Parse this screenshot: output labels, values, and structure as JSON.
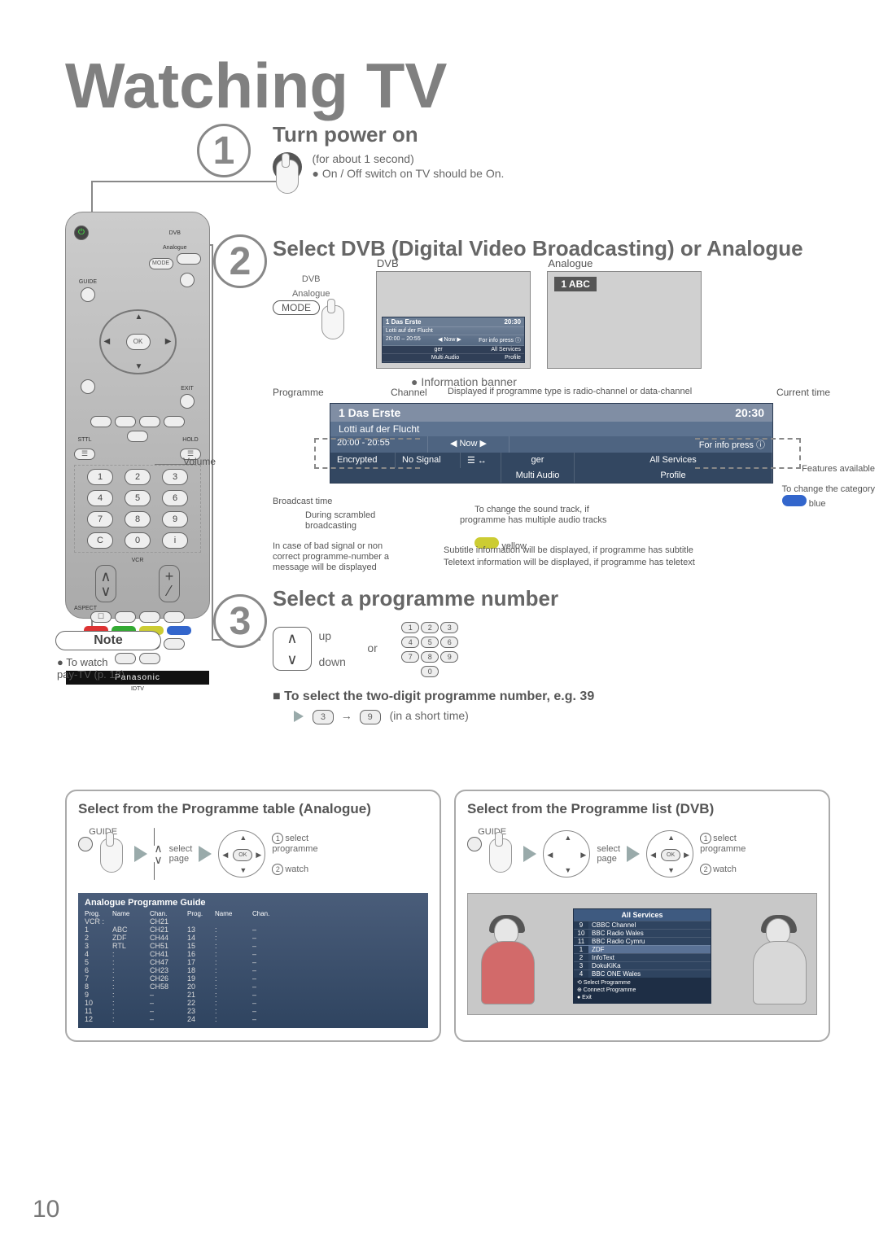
{
  "page_number": "10",
  "main_title": "Watching TV",
  "colors": {
    "heading": "#808080",
    "body": "#555555",
    "banner_top": "#808ea4",
    "banner_mid": "#5d7390",
    "banner_dark1": "#4e6481",
    "banner_dark2": "#334761",
    "apg_bg_top": "#4a5d7a",
    "apg_bg_bot": "#2f4460",
    "box_border": "#aaaaaa"
  },
  "note": {
    "label": "Note",
    "text": "To watch\npay-TV (p. 18)"
  },
  "remote": {
    "brand": "Panasonic",
    "sub_brand": "IDTV",
    "top_labels": {
      "guide": "GUIDE",
      "mode_small": "DVB\nAnalogue",
      "mode_btn": "MODE",
      "exit": "EXIT"
    },
    "ok": "OK",
    "mid_labels": {
      "sttl": "STTL",
      "hold": "HOLD"
    },
    "numbers": [
      "1",
      "2",
      "3",
      "4",
      "5",
      "6",
      "7",
      "8",
      "9",
      "C",
      "0",
      "i"
    ],
    "vcr": "VCR",
    "aspect": "ASPECT",
    "colors": [
      "#d33",
      "#3a3",
      "#cc3",
      "#36c"
    ]
  },
  "step1": {
    "num": "1",
    "title": "Turn power on",
    "sub": "(for about 1 second)",
    "bullet": "On / Off switch on TV should be On."
  },
  "step2": {
    "num": "2",
    "title": "Select DVB (Digital Video Broadcasting) or Analogue",
    "mode_top": "DVB\nAnalogue",
    "mode_btn": "MODE",
    "dvb_label": "DVB",
    "analogue_label": "Analogue",
    "analogue_ch": "1  ABC",
    "mini_banner": {
      "r1_left": "1 Das Erste",
      "r1_right": "20:30",
      "r2_left": "Lotti auf der Flucht",
      "r3_left": "20:00 – 20:55",
      "r3_mid": "◀ Now ▶",
      "r3_right": "For info press  ⓘ",
      "r4_a": "ger",
      "r4_b": "All Services",
      "r5_a": "Multi Audio",
      "r5_b": "Profile"
    },
    "info_bullet": "Information banner"
  },
  "info_banner": {
    "top_labels": {
      "programme": "Programme",
      "channel": "Channel",
      "displayed_if": "Displayed if programme type is radio-channel or data-channel",
      "current_time": "Current time"
    },
    "r1_left": "1 Das Erste",
    "r1_right": "20:30",
    "r2_a": "Lotti auf der Flucht",
    "r3_a": "20:00 - 20:55",
    "r3_b": "◀ Now ▶",
    "r3_c": "For info press  ⓘ",
    "r4_a": "Encrypted",
    "r4_b": "No Signal",
    "r4_c": "☰ ↔",
    "r4_d": "ger",
    "r4_e": "All Services",
    "r5_d": "Multi Audio",
    "r5_e": "Profile",
    "side": {
      "broadcast": "Broadcast time",
      "scrambled": "During scrambled\nbroadcasting",
      "bad_signal": "In case of bad signal or non\ncorrect programme-number a\nmessage will be displayed",
      "features": "Features available",
      "change_category": "To change the category",
      "blue": "blue",
      "sound": "To change the sound track, if\nprogramme has multiple audio tracks",
      "yellow": "yellow",
      "subtitle": "Subtitle information will be displayed, if programme has subtitle",
      "teletext": "Teletext information will be displayed, if programme has teletext"
    }
  },
  "step3": {
    "num": "3",
    "title": "Select a programme number",
    "up": "up",
    "down": "down",
    "or": "or",
    "pad": [
      "1",
      "2",
      "3",
      "4",
      "5",
      "6",
      "7",
      "8",
      "9",
      "0"
    ],
    "sub_h": "To select the two-digit programme number, e.g. 39",
    "digits": [
      "3",
      "9"
    ],
    "short": "(in a short time)"
  },
  "guide_analogue": {
    "title": "Select from the Programme table (Analogue)",
    "guide_lbl": "GUIDE",
    "sel_page": "select\npage",
    "sel_prog": "select\nprogramme",
    "watch": "watch",
    "one": "1",
    "two": "2",
    "apg_title": "Analogue Programme Guide",
    "columns": [
      "Prog.",
      "Name",
      "Chan.",
      "Prog.",
      "Name",
      "Chan."
    ],
    "vcr": "VCR :",
    "rows_left": [
      [
        "1",
        "ABC",
        "CH21"
      ],
      [
        "2",
        "ZDF",
        "CH44"
      ],
      [
        "3",
        "RTL",
        "CH51"
      ],
      [
        "4",
        ":",
        "CH41"
      ],
      [
        "5",
        ":",
        "CH47"
      ],
      [
        "6",
        ":",
        "CH23"
      ],
      [
        "7",
        ":",
        "CH26"
      ],
      [
        "8",
        ":",
        "CH58"
      ],
      [
        "9",
        ":",
        "–"
      ],
      [
        "10",
        ":",
        "–"
      ],
      [
        "11",
        ":",
        "–"
      ],
      [
        "12",
        ":",
        "–"
      ]
    ],
    "rows_right": [
      [
        "13",
        ":",
        "–"
      ],
      [
        "14",
        ":",
        "–"
      ],
      [
        "15",
        ":",
        "–"
      ],
      [
        "16",
        ":",
        "–"
      ],
      [
        "17",
        ":",
        "–"
      ],
      [
        "18",
        ":",
        "–"
      ],
      [
        "19",
        ":",
        "–"
      ],
      [
        "20",
        ":",
        "–"
      ],
      [
        "21",
        ":",
        "–"
      ],
      [
        "22",
        ":",
        "–"
      ],
      [
        "23",
        ":",
        "–"
      ],
      [
        "24",
        ":",
        "–"
      ]
    ]
  },
  "guide_dvb": {
    "title": "Select from the Programme list (DVB)",
    "guide_lbl": "GUIDE",
    "sel_page": "select\npage",
    "sel_prog": "select\nprogramme",
    "watch": "watch",
    "one": "1",
    "two": "2",
    "list": {
      "head": "All Services",
      "items": [
        [
          "9",
          "CBBC Channel"
        ],
        [
          "10",
          "BBC Radio Wales"
        ],
        [
          "11",
          "BBC Radio Cymru"
        ],
        [
          "1",
          "ZDF"
        ],
        [
          "2",
          "InfoText"
        ],
        [
          "3",
          "DokuKiKa"
        ],
        [
          "4",
          "BBC ONE Wales"
        ]
      ],
      "foot": "⟲ Select Programme\n⊕ Connect Programme\n● Exit"
    }
  },
  "volume_label": "Volume"
}
